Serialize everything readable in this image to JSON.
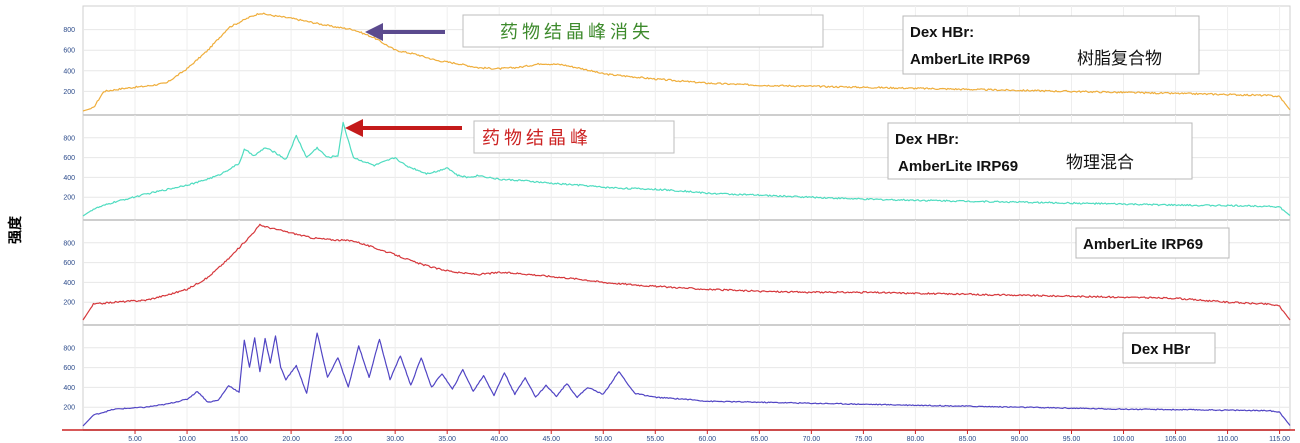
{
  "chart_data": {
    "type": "line",
    "ylabel": "强度",
    "x_ticks": [
      5,
      10,
      15,
      20,
      25,
      30,
      35,
      40,
      45,
      50,
      55,
      60,
      65,
      70,
      75,
      80,
      85,
      90,
      95,
      100,
      105,
      110,
      115
    ],
    "y_ticks": [
      200,
      400,
      600,
      800
    ],
    "xlim": [
      0,
      116
    ],
    "ylim": [
      0,
      1000
    ],
    "colors": {
      "complex": "#efae3c",
      "physical": "#4fdcc0",
      "resin": "#d6383c",
      "drug": "#5145c4",
      "annotation_green": "#3d8a2c",
      "annotation_red": "#cc2222",
      "arrow_purple": "#5b4a8e",
      "arrow_red": "#c41a1a"
    },
    "panels": [
      {
        "key": "complex",
        "legend_line1": "Dex HBr:",
        "legend_line2": "AmberLite IRP69",
        "legend_cn": "树脂复合物",
        "annotation": "药物结晶峰消失",
        "points": [
          [
            0,
            10
          ],
          [
            1,
            40
          ],
          [
            2,
            200
          ],
          [
            4,
            230
          ],
          [
            6,
            250
          ],
          [
            8,
            280
          ],
          [
            10,
            420
          ],
          [
            12,
            600
          ],
          [
            14,
            820
          ],
          [
            16,
            920
          ],
          [
            17,
            960
          ],
          [
            18,
            940
          ],
          [
            20,
            910
          ],
          [
            22,
            870
          ],
          [
            24,
            830
          ],
          [
            26,
            800
          ],
          [
            28,
            720
          ],
          [
            30,
            600
          ],
          [
            32,
            560
          ],
          [
            34,
            500
          ],
          [
            36,
            470
          ],
          [
            38,
            430
          ],
          [
            40,
            420
          ],
          [
            42,
            435
          ],
          [
            44,
            470
          ],
          [
            46,
            460
          ],
          [
            48,
            420
          ],
          [
            50,
            370
          ],
          [
            52,
            350
          ],
          [
            55,
            320
          ],
          [
            60,
            280
          ],
          [
            65,
            260
          ],
          [
            70,
            250
          ],
          [
            75,
            240
          ],
          [
            80,
            230
          ],
          [
            85,
            220
          ],
          [
            90,
            210
          ],
          [
            95,
            200
          ],
          [
            100,
            190
          ],
          [
            105,
            180
          ],
          [
            110,
            170
          ],
          [
            114,
            160
          ],
          [
            115,
            150
          ],
          [
            116,
            20
          ]
        ]
      },
      {
        "key": "physical",
        "legend_line1": "Dex HBr:",
        "legend_line2": "AmberLite IRP69",
        "legend_cn": "物理混合",
        "annotation": "药物结晶峰",
        "points": [
          [
            0,
            10
          ],
          [
            1,
            80
          ],
          [
            3,
            150
          ],
          [
            6,
            230
          ],
          [
            9,
            300
          ],
          [
            11,
            350
          ],
          [
            13,
            420
          ],
          [
            14,
            480
          ],
          [
            15,
            540
          ],
          [
            15.5,
            680
          ],
          [
            16.5,
            620
          ],
          [
            17.5,
            700
          ],
          [
            18.5,
            650
          ],
          [
            19.5,
            580
          ],
          [
            20.5,
            820
          ],
          [
            21.5,
            600
          ],
          [
            22.5,
            700
          ],
          [
            23.5,
            600
          ],
          [
            24.5,
            620
          ],
          [
            25,
            950
          ],
          [
            26,
            600
          ],
          [
            27,
            560
          ],
          [
            28,
            520
          ],
          [
            29,
            560
          ],
          [
            30,
            600
          ],
          [
            31,
            520
          ],
          [
            32,
            480
          ],
          [
            33,
            440
          ],
          [
            34,
            460
          ],
          [
            35,
            500
          ],
          [
            36,
            420
          ],
          [
            37,
            400
          ],
          [
            38,
            420
          ],
          [
            40,
            380
          ],
          [
            42,
            370
          ],
          [
            45,
            340
          ],
          [
            48,
            320
          ],
          [
            50,
            300
          ],
          [
            52,
            290
          ],
          [
            55,
            280
          ],
          [
            58,
            260
          ],
          [
            60,
            240
          ],
          [
            65,
            220
          ],
          [
            70,
            200
          ],
          [
            75,
            180
          ],
          [
            80,
            170
          ],
          [
            85,
            160
          ],
          [
            90,
            150
          ],
          [
            95,
            140
          ],
          [
            100,
            130
          ],
          [
            105,
            120
          ],
          [
            110,
            115
          ],
          [
            114,
            110
          ],
          [
            115,
            100
          ],
          [
            116,
            15
          ]
        ]
      },
      {
        "key": "resin",
        "legend_line1": "AmberLite IRP69",
        "points": [
          [
            0,
            20
          ],
          [
            1,
            180
          ],
          [
            3,
            200
          ],
          [
            6,
            220
          ],
          [
            8,
            270
          ],
          [
            10,
            330
          ],
          [
            12,
            450
          ],
          [
            14,
            640
          ],
          [
            16,
            860
          ],
          [
            17,
            980
          ],
          [
            18,
            950
          ],
          [
            20,
            900
          ],
          [
            22,
            850
          ],
          [
            24,
            830
          ],
          [
            26,
            820
          ],
          [
            28,
            750
          ],
          [
            30,
            680
          ],
          [
            32,
            600
          ],
          [
            34,
            540
          ],
          [
            36,
            500
          ],
          [
            38,
            480
          ],
          [
            40,
            500
          ],
          [
            42,
            490
          ],
          [
            44,
            470
          ],
          [
            46,
            450
          ],
          [
            48,
            430
          ],
          [
            50,
            400
          ],
          [
            55,
            360
          ],
          [
            60,
            330
          ],
          [
            65,
            310
          ],
          [
            70,
            300
          ],
          [
            75,
            300
          ],
          [
            80,
            290
          ],
          [
            85,
            280
          ],
          [
            90,
            270
          ],
          [
            95,
            260
          ],
          [
            100,
            250
          ],
          [
            105,
            240
          ],
          [
            110,
            200
          ],
          [
            114,
            180
          ],
          [
            115,
            160
          ],
          [
            116,
            20
          ]
        ]
      },
      {
        "key": "drug",
        "legend_line1": "Dex HBr",
        "points": [
          [
            0,
            10
          ],
          [
            1,
            120
          ],
          [
            3,
            180
          ],
          [
            6,
            200
          ],
          [
            8,
            230
          ],
          [
            10,
            280
          ],
          [
            11,
            360
          ],
          [
            12,
            250
          ],
          [
            13,
            270
          ],
          [
            14,
            420
          ],
          [
            15,
            350
          ],
          [
            15.5,
            880
          ],
          [
            16,
            600
          ],
          [
            16.5,
            900
          ],
          [
            17,
            560
          ],
          [
            17.5,
            890
          ],
          [
            18,
            650
          ],
          [
            18.5,
            920
          ],
          [
            19,
            600
          ],
          [
            19.5,
            480
          ],
          [
            20.5,
            620
          ],
          [
            21.5,
            340
          ],
          [
            22.5,
            950
          ],
          [
            23.5,
            500
          ],
          [
            24.5,
            700
          ],
          [
            25.5,
            400
          ],
          [
            26.5,
            820
          ],
          [
            27.5,
            500
          ],
          [
            28.5,
            890
          ],
          [
            29.5,
            480
          ],
          [
            30.5,
            720
          ],
          [
            31.5,
            420
          ],
          [
            32.5,
            700
          ],
          [
            33.5,
            400
          ],
          [
            34.5,
            540
          ],
          [
            35.5,
            380
          ],
          [
            36.5,
            580
          ],
          [
            37.5,
            360
          ],
          [
            38.5,
            520
          ],
          [
            39.5,
            320
          ],
          [
            40.5,
            550
          ],
          [
            41.5,
            330
          ],
          [
            42.5,
            500
          ],
          [
            43.5,
            300
          ],
          [
            44.5,
            420
          ],
          [
            45.5,
            310
          ],
          [
            46.5,
            440
          ],
          [
            47.5,
            300
          ],
          [
            48.5,
            400
          ],
          [
            50,
            330
          ],
          [
            51.5,
            560
          ],
          [
            53,
            340
          ],
          [
            55,
            300
          ],
          [
            58,
            280
          ],
          [
            60,
            260
          ],
          [
            65,
            250
          ],
          [
            70,
            240
          ],
          [
            75,
            230
          ],
          [
            80,
            220
          ],
          [
            85,
            210
          ],
          [
            90,
            200
          ],
          [
            95,
            190
          ],
          [
            100,
            180
          ],
          [
            105,
            175
          ],
          [
            110,
            170
          ],
          [
            114,
            165
          ],
          [
            115,
            150
          ],
          [
            116,
            15
          ]
        ]
      }
    ]
  }
}
